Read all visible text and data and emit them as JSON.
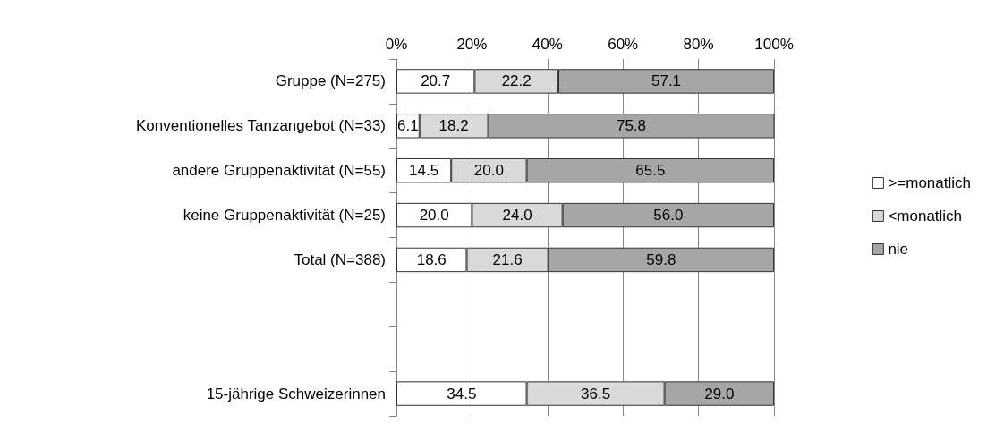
{
  "chart_data": {
    "type": "bar",
    "orientation": "horizontal",
    "stacked": true,
    "categories": [
      "Gruppe (N=275)",
      "Konventionelles Tanzangebot (N=33)",
      "andere Gruppenaktivität (N=55)",
      "keine Gruppenaktivität (N=25)",
      "Total (N=388)",
      null,
      null,
      "15-jährige Schweizerinnen"
    ],
    "series": [
      {
        "name": ">=monatlich",
        "color": "#ffffff",
        "values": [
          20.7,
          6.1,
          14.5,
          20.0,
          18.6,
          null,
          null,
          34.5
        ],
        "value_labels": [
          "20.7",
          "6.1",
          "14.5",
          "20.0",
          "18.6",
          null,
          null,
          "34.5"
        ]
      },
      {
        "name": "<monatlich",
        "color": "#d9d9d9",
        "values": [
          22.2,
          18.2,
          20.0,
          24.0,
          21.6,
          null,
          null,
          36.5
        ],
        "value_labels": [
          "22.2",
          "18.2",
          "20.0",
          "24.0",
          "21.6",
          null,
          null,
          "36.5"
        ]
      },
      {
        "name": "nie",
        "color": "#a6a6a6",
        "values": [
          57.1,
          75.8,
          65.5,
          56.0,
          59.8,
          null,
          null,
          29.0
        ],
        "value_labels": [
          "57.1",
          "75.8",
          "65.5",
          "56.0",
          "59.8",
          null,
          null,
          "29.0"
        ]
      }
    ],
    "xlim": [
      0,
      100
    ],
    "xticks": [
      {
        "value": 0,
        "label": "0%"
      },
      {
        "value": 20,
        "label": "20%"
      },
      {
        "value": 40,
        "label": "40%"
      },
      {
        "value": 60,
        "label": "60%"
      },
      {
        "value": 80,
        "label": "80%"
      },
      {
        "value": 100,
        "label": "100%"
      }
    ],
    "grid": "x",
    "legend": "right"
  }
}
